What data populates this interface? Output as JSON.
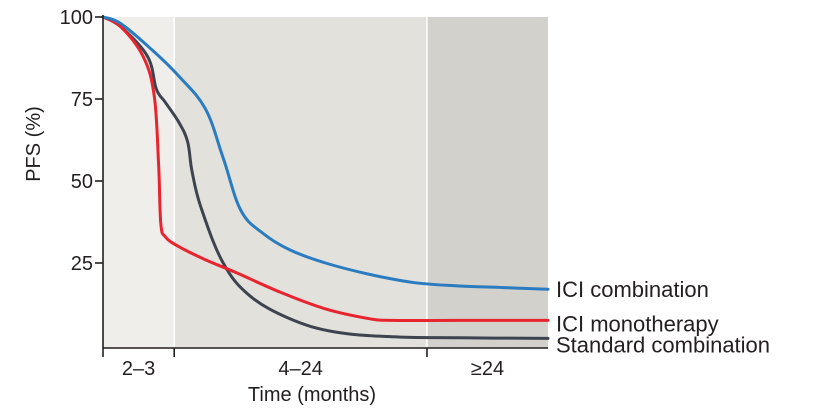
{
  "chart_data": {
    "type": "line",
    "ylabel": "PFS (%)",
    "xlabel": "Time (months)",
    "ylim": [
      0,
      100
    ],
    "yticks": [
      "100",
      "75",
      "50",
      "25"
    ],
    "ytick_values": [
      100,
      75,
      50,
      25
    ],
    "grid": false,
    "x_unit": "fraction of plotted time axis (0 = start, 1 = end)",
    "periods": [
      {
        "label": "2–3",
        "x_start": 0.0,
        "x_end": 0.16,
        "shade": "#efeeea"
      },
      {
        "label": "4–24",
        "x_start": 0.16,
        "x_end": 0.728,
        "shade": "#e2e1dc"
      },
      {
        "label": "≥24",
        "x_start": 0.728,
        "x_end": 1.0,
        "shade": "#d2d1cc"
      }
    ],
    "series": [
      {
        "name": "ICI combination",
        "color": "#2b7bc0",
        "x": [
          0.0,
          0.04,
          0.11,
          0.17,
          0.23,
          0.27,
          0.31,
          0.36,
          0.42,
          0.5,
          0.6,
          0.7,
          0.8,
          0.9,
          1.0
        ],
        "y": [
          100,
          98,
          90,
          82,
          72,
          57,
          41,
          34,
          29,
          25,
          21.5,
          19,
          18,
          17.5,
          17
        ]
      },
      {
        "name": "ICI monotherapy",
        "color": "#e8242e",
        "x": [
          0.0,
          0.04,
          0.09,
          0.115,
          0.125,
          0.13,
          0.14,
          0.17,
          0.23,
          0.3,
          0.4,
          0.5,
          0.6,
          0.65,
          0.8,
          1.0
        ],
        "y": [
          100,
          97,
          88,
          76,
          55,
          37,
          33,
          30,
          26,
          22,
          16,
          11,
          8,
          7.5,
          7.5,
          7.5
        ]
      },
      {
        "name": "Standard combination",
        "color": "#3d4450",
        "x": [
          0.0,
          0.04,
          0.1,
          0.12,
          0.14,
          0.17,
          0.19,
          0.2,
          0.22,
          0.27,
          0.33,
          0.42,
          0.52,
          0.65,
          0.8,
          1.0
        ],
        "y": [
          100,
          97,
          88,
          78,
          74,
          68,
          62,
          53,
          42,
          25,
          15,
          8,
          4,
          2.5,
          2.2,
          2
        ]
      }
    ]
  }
}
